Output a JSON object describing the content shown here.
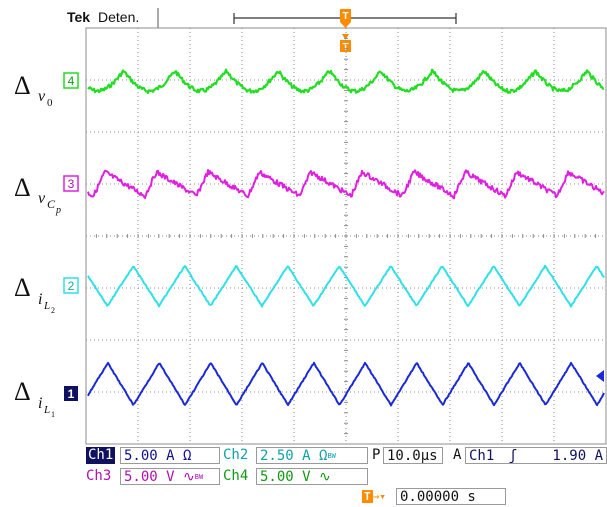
{
  "header": {
    "brand": "Tek",
    "status": "Deten."
  },
  "trigger_marker": "T",
  "channels": [
    {
      "id": "4",
      "symbol": "Δ",
      "sub": "v",
      "subsub": "0",
      "color": "#22dd22"
    },
    {
      "id": "3",
      "symbol": "Δ",
      "sub": "v",
      "subsub": "C",
      "subsubsub": "p",
      "color": "#e020e0"
    },
    {
      "id": "2",
      "symbol": "Δ",
      "sub": "i",
      "subsub": "L",
      "subsubsub": "2",
      "color": "#30e0e8"
    },
    {
      "id": "1",
      "symbol": "Δ",
      "sub": "i",
      "subsub": "L",
      "subsubsub": "1",
      "color": "#1a2ad8"
    }
  ],
  "readouts": {
    "ch1_label": "Ch1",
    "ch1_value": "5.00 A Ω",
    "ch2_label": "Ch2",
    "ch2_value": "2.50 A Ω",
    "ch2_bw": "BW",
    "ch3_label": "Ch3",
    "ch3_value": "5.00 V",
    "ch3_coupling": "∿",
    "ch3_bw": "BW",
    "ch4_label": "Ch4",
    "ch4_value": "5.00 V",
    "ch4_coupling": "∿",
    "acq_mode": "P",
    "timebase": "10.0μs",
    "trig_mode": "A",
    "trig_source": "Ch1",
    "trig_slope": "ʃ",
    "trig_level": "1.90 A",
    "trig_pos": "0.00000 s"
  },
  "colors": {
    "grid": "#8c8c8c",
    "orange": "#ff8c00",
    "ch1": "#1a2ad8",
    "ch2": "#30e0e8",
    "ch3": "#e020e0",
    "ch4": "#22dd22",
    "navy": "#101060"
  }
}
